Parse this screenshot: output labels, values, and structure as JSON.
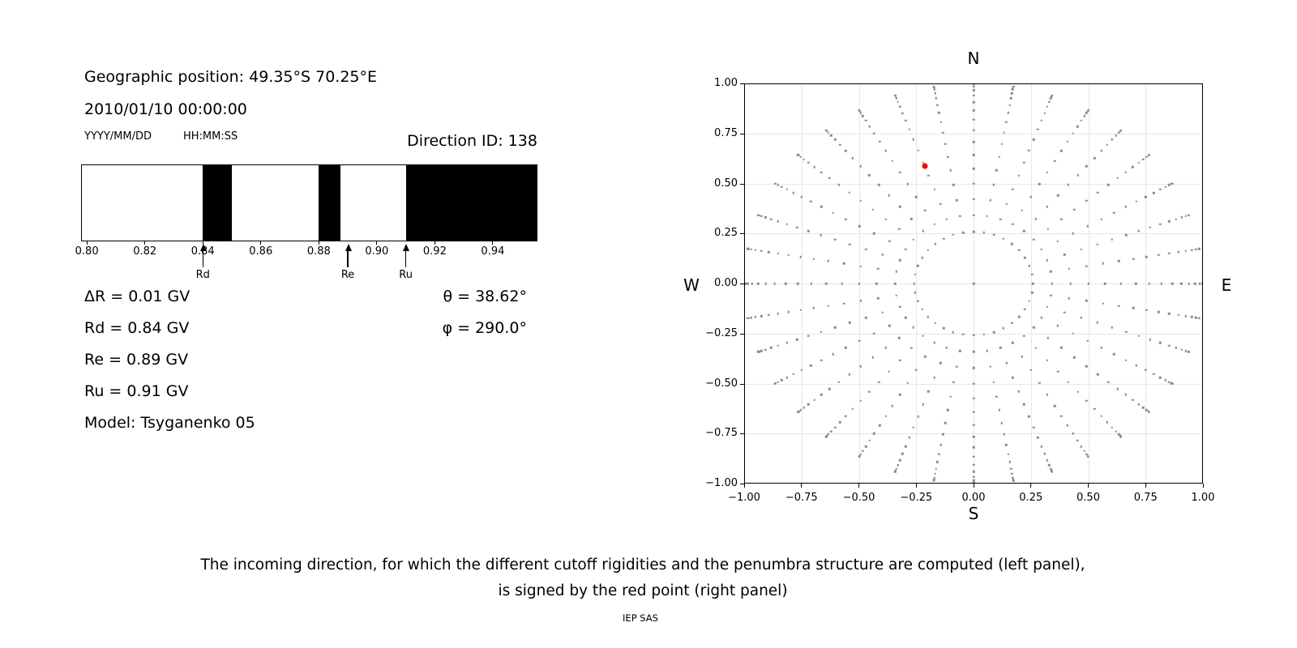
{
  "header": {
    "geographic_position": "Geographic position: 49.35°S 70.25°E",
    "datetime": "2010/01/10 00:00:00",
    "date_format_label": "YYYY/MM/DD",
    "time_format_label": "HH:MM:SS",
    "direction_id": "Direction ID: 138"
  },
  "info": {
    "delta_r": "ΔR = 0.01 GV",
    "rd": "Rd = 0.84 GV",
    "re": "Re = 0.89 GV",
    "ru": "Ru = 0.91 GV",
    "model": "Model: Tsyganenko 05",
    "theta": "θ = 38.62°",
    "phi": "φ = 290.0°"
  },
  "direction_plot": {
    "compass": {
      "n": "N",
      "e": "E",
      "s": "S",
      "w": "W"
    }
  },
  "caption": {
    "line1": "The incoming direction, for which the different cutoff rigidities and the penumbra structure are computed (left panel),",
    "line2": "is signed by the red point (right panel)"
  },
  "footer": {
    "credit": "IEP SAS"
  },
  "colors": {
    "band_black": "#000000",
    "grid_dot_gray": "#8a8a8a",
    "red_point": "#ff0000",
    "gridline": "#e7e7e7"
  },
  "chart_data": [
    {
      "type": "bar",
      "title": "Direction ID: 138",
      "description": "Penumbra structure: black bands = forbidden rigidity intervals, white = allowed",
      "xlim": [
        0.798,
        0.9554
      ],
      "xticks": [
        0.8,
        0.82,
        0.84,
        0.86,
        0.88,
        0.9,
        0.92,
        0.94
      ],
      "black_bands": [
        [
          0.84,
          0.85
        ],
        [
          0.88,
          0.8875
        ],
        [
          0.91,
          0.9554
        ]
      ],
      "markers": [
        {
          "label": "Rd",
          "x": 0.84
        },
        {
          "label": "Re",
          "x": 0.89
        },
        {
          "label": "Ru",
          "x": 0.91
        }
      ],
      "values": {
        "delta_R_GV": 0.01,
        "Rd_GV": 0.84,
        "Re_GV": 0.89,
        "Ru_GV": 0.91,
        "theta_deg": 38.62,
        "phi_deg": 290.0,
        "model": "Tsyganenko 05"
      }
    },
    {
      "type": "scatter",
      "description": "Grid of incoming directions: radius = sin(zenith), 36 azimuth spokes",
      "xlim": [
        -1.0,
        1.0
      ],
      "ylim": [
        -1.0,
        1.0
      ],
      "ticks": [
        -1.0,
        -0.75,
        -0.5,
        -0.25,
        0.0,
        0.25,
        0.5,
        0.75,
        1.0
      ],
      "grid": true,
      "compass_labels": [
        "N",
        "E",
        "S",
        "W"
      ],
      "gray_grid": {
        "azimuth_deg": {
          "start": 0,
          "stop": 350,
          "step": 10
        },
        "zenith_deg": {
          "start": 15,
          "stop": 90,
          "step": 5
        },
        "includes_center_point": true,
        "radius_rule": "sin(zenith)",
        "color": "#8a8a8a"
      },
      "red_point": {
        "x": -0.213,
        "y": 0.586,
        "color": "#ff0000",
        "zenith_deg": 38.62,
        "note": "incoming direction"
      }
    }
  ]
}
